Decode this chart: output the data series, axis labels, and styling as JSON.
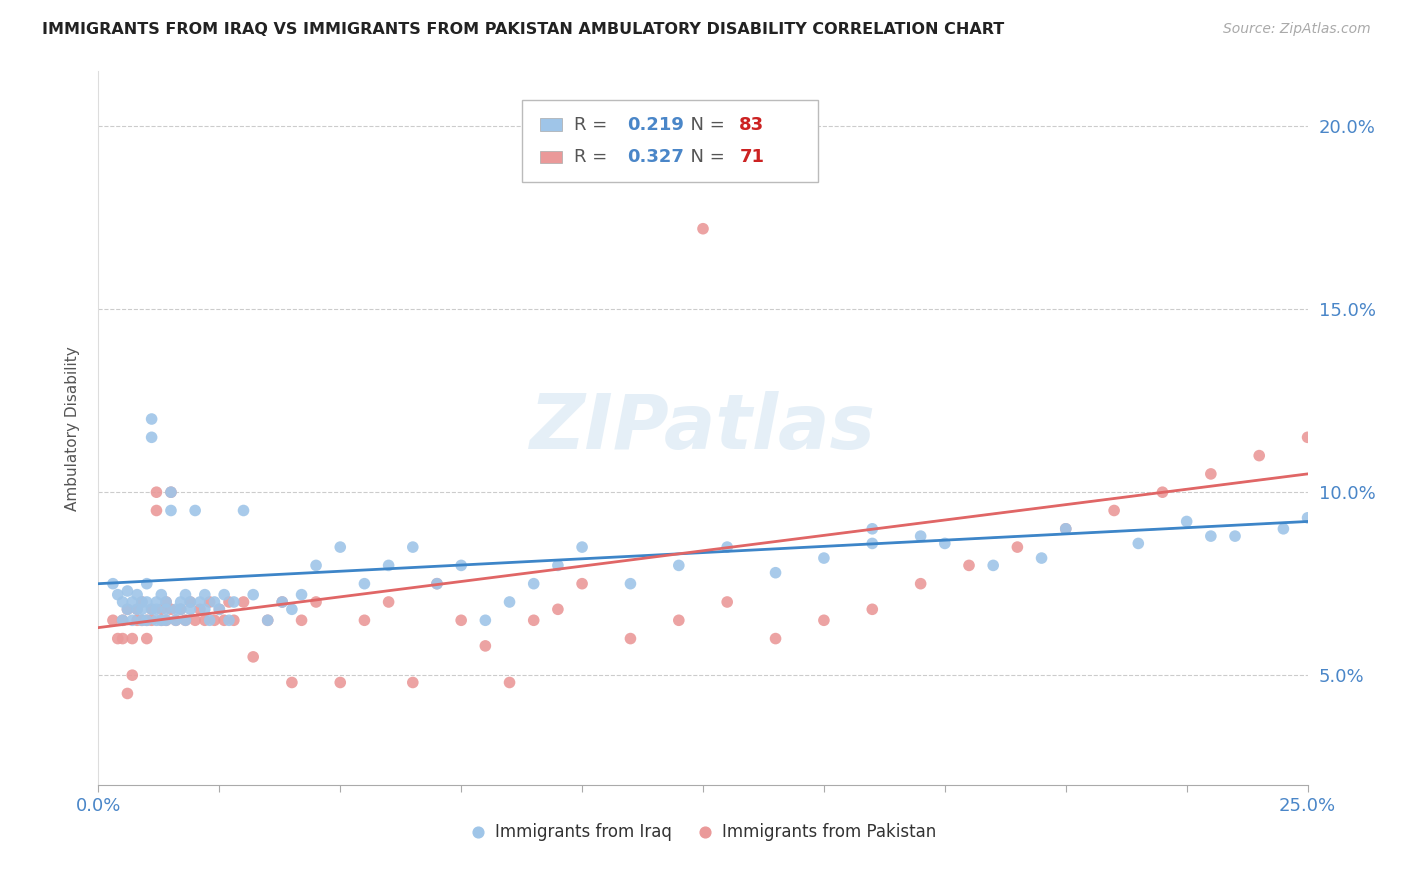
{
  "title": "IMMIGRANTS FROM IRAQ VS IMMIGRANTS FROM PAKISTAN AMBULATORY DISABILITY CORRELATION CHART",
  "source": "Source: ZipAtlas.com",
  "ylabel": "Ambulatory Disability",
  "ytick_labels": [
    "5.0%",
    "10.0%",
    "15.0%",
    "20.0%"
  ],
  "ytick_values": [
    0.05,
    0.1,
    0.15,
    0.2
  ],
  "xlim": [
    0.0,
    0.25
  ],
  "ylim": [
    0.02,
    0.215
  ],
  "legend_iraq": "Immigrants from Iraq",
  "legend_pakistan": "Immigrants from Pakistan",
  "r_iraq": "0.219",
  "n_iraq": "83",
  "r_pakistan": "0.327",
  "n_pakistan": "71",
  "color_iraq": "#9fc5e8",
  "color_pakistan": "#ea9999",
  "color_iraq_line": "#3d85c8",
  "color_pakistan_line": "#e06666",
  "color_axis": "#4a86c8",
  "watermark": "ZIPatlas",
  "iraq_x": [
    0.003,
    0.004,
    0.005,
    0.005,
    0.006,
    0.006,
    0.007,
    0.007,
    0.008,
    0.008,
    0.009,
    0.009,
    0.009,
    0.01,
    0.01,
    0.01,
    0.011,
    0.011,
    0.011,
    0.012,
    0.012,
    0.012,
    0.013,
    0.013,
    0.014,
    0.014,
    0.014,
    0.015,
    0.015,
    0.016,
    0.016,
    0.017,
    0.017,
    0.018,
    0.018,
    0.019,
    0.019,
    0.02,
    0.021,
    0.022,
    0.022,
    0.023,
    0.024,
    0.025,
    0.026,
    0.027,
    0.028,
    0.03,
    0.032,
    0.035,
    0.038,
    0.04,
    0.042,
    0.045,
    0.05,
    0.055,
    0.06,
    0.065,
    0.07,
    0.075,
    0.08,
    0.085,
    0.09,
    0.095,
    0.1,
    0.11,
    0.12,
    0.13,
    0.14,
    0.15,
    0.16,
    0.17,
    0.185,
    0.2,
    0.215,
    0.225,
    0.235,
    0.245,
    0.25,
    0.23,
    0.195,
    0.175,
    0.16
  ],
  "iraq_y": [
    0.075,
    0.072,
    0.07,
    0.065,
    0.073,
    0.068,
    0.07,
    0.065,
    0.072,
    0.068,
    0.07,
    0.065,
    0.068,
    0.075,
    0.07,
    0.065,
    0.115,
    0.12,
    0.068,
    0.07,
    0.065,
    0.068,
    0.072,
    0.065,
    0.07,
    0.068,
    0.065,
    0.095,
    0.1,
    0.068,
    0.065,
    0.07,
    0.068,
    0.072,
    0.065,
    0.07,
    0.068,
    0.095,
    0.07,
    0.068,
    0.072,
    0.065,
    0.07,
    0.068,
    0.072,
    0.065,
    0.07,
    0.095,
    0.072,
    0.065,
    0.07,
    0.068,
    0.072,
    0.08,
    0.085,
    0.075,
    0.08,
    0.085,
    0.075,
    0.08,
    0.065,
    0.07,
    0.075,
    0.08,
    0.085,
    0.075,
    0.08,
    0.085,
    0.078,
    0.082,
    0.086,
    0.088,
    0.08,
    0.09,
    0.086,
    0.092,
    0.088,
    0.09,
    0.093,
    0.088,
    0.082,
    0.086,
    0.09
  ],
  "pakistan_x": [
    0.003,
    0.004,
    0.005,
    0.005,
    0.006,
    0.006,
    0.007,
    0.007,
    0.008,
    0.008,
    0.009,
    0.009,
    0.01,
    0.01,
    0.011,
    0.011,
    0.012,
    0.012,
    0.013,
    0.013,
    0.014,
    0.014,
    0.015,
    0.015,
    0.016,
    0.017,
    0.018,
    0.019,
    0.02,
    0.021,
    0.022,
    0.023,
    0.024,
    0.025,
    0.026,
    0.027,
    0.028,
    0.03,
    0.032,
    0.035,
    0.038,
    0.04,
    0.042,
    0.045,
    0.05,
    0.055,
    0.06,
    0.065,
    0.07,
    0.075,
    0.08,
    0.085,
    0.09,
    0.095,
    0.1,
    0.11,
    0.12,
    0.13,
    0.14,
    0.15,
    0.16,
    0.17,
    0.18,
    0.19,
    0.2,
    0.21,
    0.22,
    0.23,
    0.24,
    0.25,
    0.125
  ],
  "pakistan_y": [
    0.065,
    0.06,
    0.065,
    0.06,
    0.068,
    0.045,
    0.05,
    0.06,
    0.065,
    0.068,
    0.07,
    0.065,
    0.06,
    0.065,
    0.068,
    0.065,
    0.1,
    0.095,
    0.068,
    0.065,
    0.07,
    0.065,
    0.068,
    0.1,
    0.065,
    0.068,
    0.065,
    0.07,
    0.065,
    0.068,
    0.065,
    0.07,
    0.065,
    0.068,
    0.065,
    0.07,
    0.065,
    0.07,
    0.055,
    0.065,
    0.07,
    0.048,
    0.065,
    0.07,
    0.048,
    0.065,
    0.07,
    0.048,
    0.075,
    0.065,
    0.058,
    0.048,
    0.065,
    0.068,
    0.075,
    0.06,
    0.065,
    0.07,
    0.06,
    0.065,
    0.068,
    0.075,
    0.08,
    0.085,
    0.09,
    0.095,
    0.1,
    0.105,
    0.11,
    0.115,
    0.172
  ]
}
